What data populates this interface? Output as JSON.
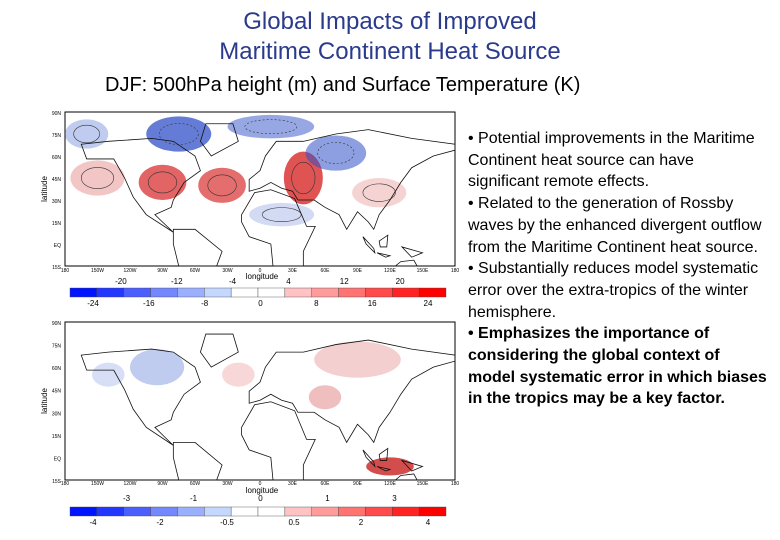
{
  "header": {
    "title_lines": [
      "Global Impacts of Improved",
      "Maritime Continent Heat Source"
    ],
    "subtitle": "DJF: 500hPa height (m) and Surface Temperature (K)"
  },
  "maps": [
    {
      "y_label": "latitude",
      "x_label": "longitude",
      "lat_ticks": [
        "90N",
        "75N",
        "60N",
        "45N",
        "30N",
        "15N",
        "EQ",
        "15S"
      ],
      "lon_ticks": [
        "180",
        "150W",
        "120W",
        "90W",
        "60W",
        "30W",
        "0",
        "30E",
        "60E",
        "90E",
        "120E",
        "150E",
        "180"
      ],
      "colorbar_upper": [
        "-20",
        "-12",
        "-4",
        "4",
        "12",
        "20"
      ],
      "colorbar_lower": [
        "-24",
        "-16",
        "-8",
        "0",
        "8",
        "16",
        "24"
      ]
    },
    {
      "y_label": "latitude",
      "x_label": "longitude",
      "lat_ticks": [
        "90N",
        "75N",
        "60N",
        "45N",
        "30N",
        "15N",
        "EQ",
        "15S"
      ],
      "lon_ticks": [
        "180",
        "150W",
        "120W",
        "90W",
        "60W",
        "30W",
        "0",
        "30E",
        "60E",
        "90E",
        "120E",
        "150E",
        "180"
      ],
      "colorbar_upper": [
        "-3",
        "-1",
        "0",
        "1",
        "3"
      ],
      "colorbar_lower": [
        "-4",
        "-2",
        "-0.5",
        "0.5",
        "2",
        "4"
      ]
    }
  ],
  "bullets": [
    {
      "text": "• Potential improvements in the Maritime Continent heat source can have significant remote effects.",
      "bold": false
    },
    {
      "text": "• Related to the generation of Rossby waves by the enhanced divergent outflow from the Maritime Continent heat source.",
      "bold": false
    },
    {
      "text": "• Substantially reduces model systematic error over the extra-tropics of the winter hemisphere.",
      "bold": false
    },
    {
      "text": "• Emphasizes the importance of considering the  global context of model systematic error in which biases in the tropics may be a key factor.",
      "bold": true
    }
  ]
}
